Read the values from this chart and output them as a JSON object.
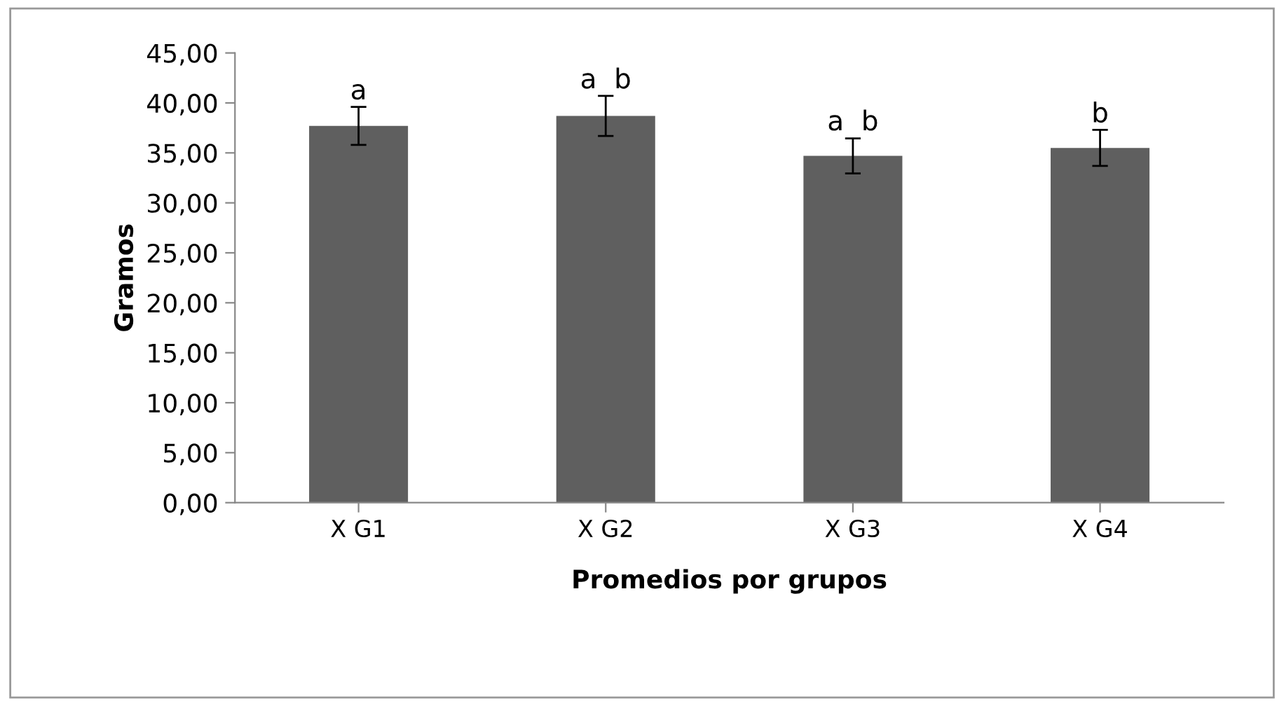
{
  "chart_data": {
    "type": "bar",
    "xlabel": "Promedios por grupos",
    "ylabel": "Gramos",
    "categories": [
      "X G1",
      "X G2",
      "X G3",
      "X G4"
    ],
    "values": [
      37.7,
      38.7,
      34.7,
      35.5
    ],
    "errors": [
      1.9,
      2.0,
      1.75,
      1.8
    ],
    "color": "#5f5f5f",
    "ylim": [
      0,
      45
    ],
    "yticks": [
      {
        "value": 0,
        "label": "0,00"
      },
      {
        "value": 5,
        "label": "5,00"
      },
      {
        "value": 10,
        "label": "10,00"
      },
      {
        "value": 15,
        "label": "15,00"
      },
      {
        "value": 20,
        "label": "20,00"
      },
      {
        "value": 25,
        "label": "25,00"
      },
      {
        "value": 30,
        "label": "30,00"
      },
      {
        "value": 35,
        "label": "35,00"
      },
      {
        "value": 40,
        "label": "40,00"
      },
      {
        "value": 45,
        "label": "45,00"
      }
    ],
    "annotations": [
      {
        "text": "a",
        "x": "X G1",
        "y": 39.6
      },
      {
        "text": "a  b",
        "x": "X G2",
        "y": 40.7
      },
      {
        "text": "a  b",
        "x": "X G3",
        "y": 36.5
      },
      {
        "text": "b",
        "x": "X G4",
        "y": 37.3
      }
    ],
    "grid": false,
    "legend": false
  }
}
